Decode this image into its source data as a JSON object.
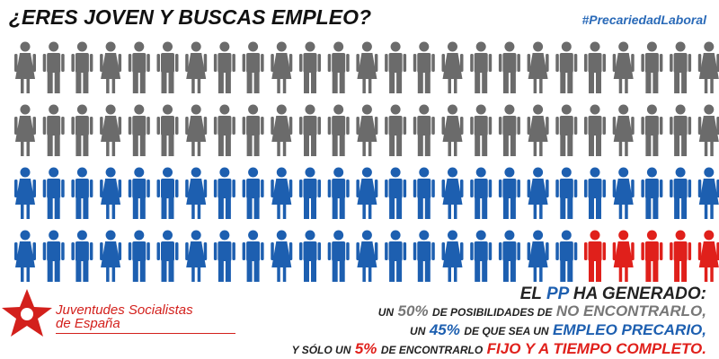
{
  "title": "¿ERES JOVEN Y BUSCAS EMPLEO?",
  "hashtag": "#PrecariedadLaboral",
  "icon_groups": [
    {
      "count": 50,
      "color": "#6b6b6b"
    },
    {
      "count": 45,
      "color": "#1d5fb0"
    },
    {
      "count": 5,
      "color": "#e0201b"
    }
  ],
  "logo": {
    "line1": "Juventudes Socialistas",
    "line2": "de España"
  },
  "message": {
    "heading": [
      "EL",
      "PP",
      "HA GENERADO:"
    ],
    "line1": [
      "UN",
      "50%",
      "DE POSIBILIDADES DE",
      "NO ENCONTRARLO,"
    ],
    "line2": [
      "UN",
      "45%",
      "DE QUE SEA UN",
      "EMPLEO PRECARIO,"
    ],
    "line3": [
      "Y SÓLO UN",
      "5%",
      "DE ENCONTRARLO",
      "FIJO Y A TIEMPO COMPLETO."
    ]
  }
}
